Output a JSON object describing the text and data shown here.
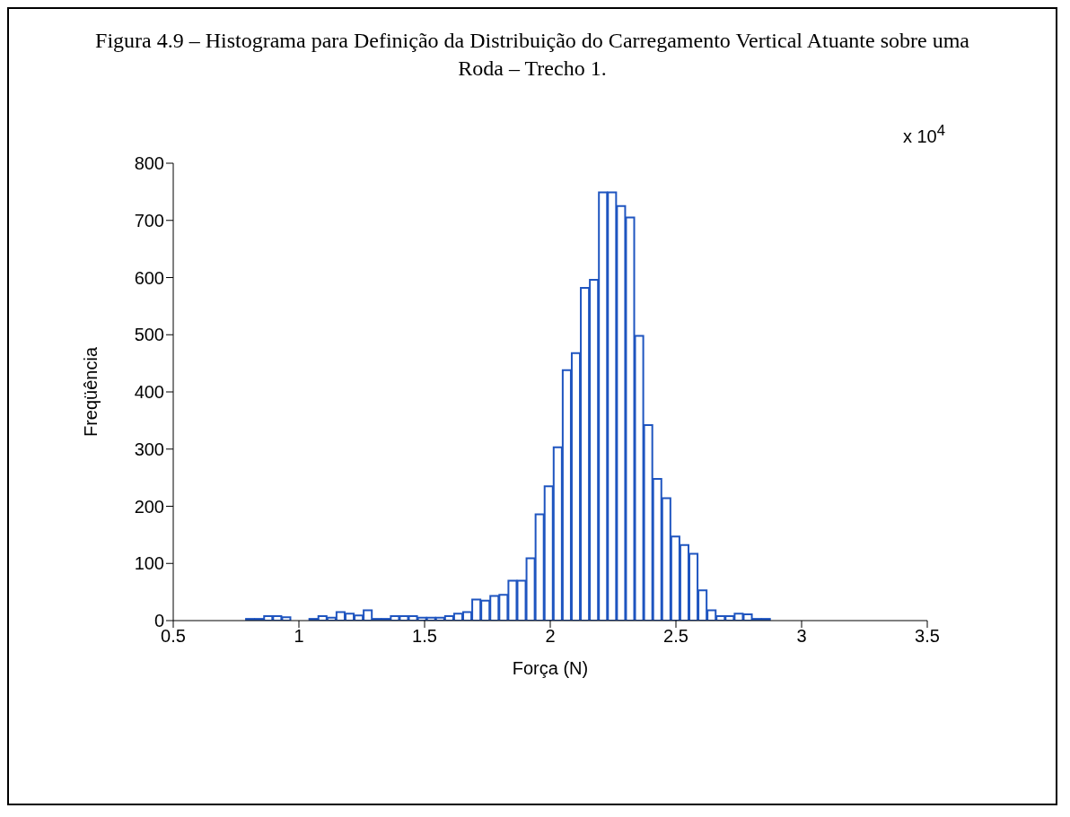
{
  "chart_data": {
    "type": "histogram",
    "title": "Figura 4.9 – Histograma para Definição da Distribuição do Carregamento Vertical Atuante sobre uma Roda – Trecho 1.",
    "xlabel": "Força (N)",
    "ylabel": "Freqüência",
    "annotations": [
      "x 10$^{4}$"
    ],
    "bins": [
      0.75,
      0.786,
      0.822,
      0.858,
      0.894,
      0.93,
      0.966,
      1.002,
      1.038,
      1.074,
      1.11,
      1.146,
      1.182,
      1.218,
      1.254,
      1.29,
      1.326,
      1.362,
      1.398,
      1.434,
      1.47,
      1.506,
      1.542,
      1.578,
      1.614,
      1.65,
      1.686,
      1.722,
      1.758,
      1.794,
      1.83,
      1.866,
      1.902,
      1.938,
      1.974,
      2.01,
      2.046,
      2.082,
      2.118,
      2.154,
      2.19,
      2.226,
      2.262,
      2.298,
      2.334,
      2.37,
      2.406,
      2.442,
      2.478,
      2.514,
      2.55,
      2.586,
      2.622,
      2.658,
      2.694,
      2.73,
      2.766,
      2.802,
      2.838,
      2.874
    ],
    "values": [
      null,
      3,
      3,
      8,
      8,
      6,
      null,
      null,
      3,
      8,
      5,
      15,
      12,
      9,
      18,
      3,
      3,
      8,
      8,
      8,
      5,
      5,
      5,
      8,
      12,
      15,
      37,
      35,
      43,
      45,
      70,
      70,
      109,
      186,
      235,
      303,
      438,
      468,
      582,
      596,
      749,
      749,
      725,
      705,
      498,
      342,
      248,
      214,
      147,
      132,
      117,
      53,
      18,
      8,
      8,
      12,
      11,
      3,
      3
    ],
    "color": "#1f55c0",
    "xlim": [
      0.5,
      3.5
    ],
    "xticks": [
      0.5,
      1,
      1.5,
      2,
      2.5,
      3,
      3.5
    ],
    "ylim": [
      0,
      800
    ],
    "yticks": [
      0,
      100,
      200,
      300,
      400,
      500,
      600,
      700,
      800
    ],
    "grid": false
  }
}
